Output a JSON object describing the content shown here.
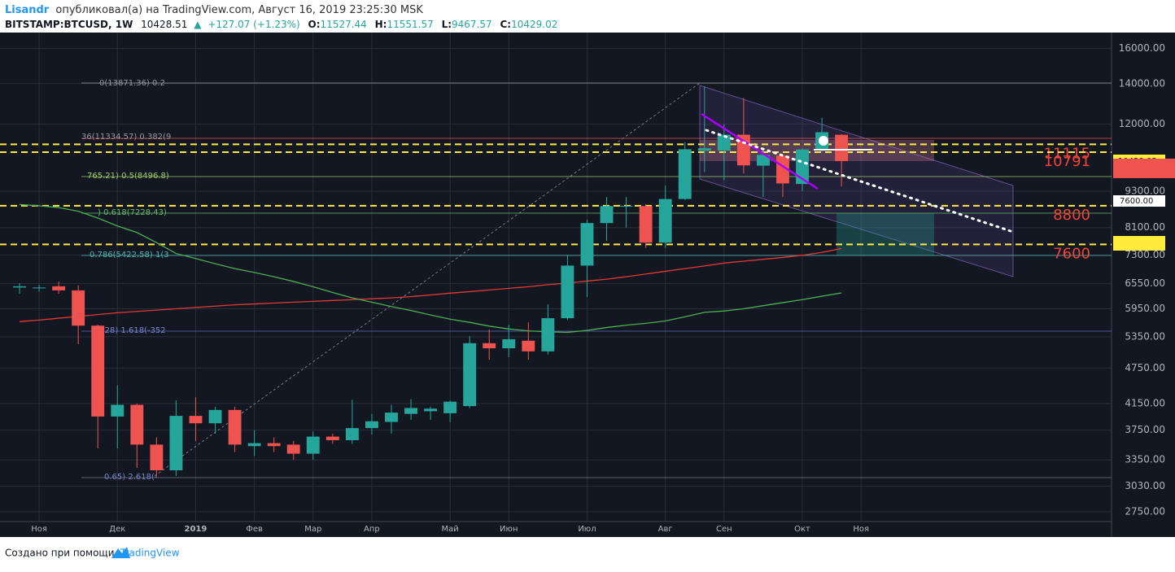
{
  "header": {
    "author": "Lisandr",
    "published": "опубликовал(а) на TradingView.com, Август 16, 2019 23:25:30 MSK",
    "symbol": "BITSTAMP:BTCUSD, 1W",
    "last": "10428.51",
    "change": "+127.07 (+1.23%)",
    "ohlc_labels": [
      "O:",
      "H:",
      "L:",
      "C:"
    ]
  },
  "footer": {
    "text": "Создано при помощи",
    "brand": "TradingView"
  },
  "fib_labels": [
    "0(13871.36) 0.2",
    "36(11334.57) 0.382(9",
    "765.21) 0.5(8496.8)",
    ") 0.618(7228.43)",
    "0.786(5422.58) 1(3",
    "(3428) 1.618(-352",
    "0.65) 2.618(-"
  ],
  "axis_tag": "7600.00",
  "chart_data": {
    "type": "candlestick",
    "log_scale": true,
    "grid": true,
    "categories": [
      null,
      "Ноя",
      null,
      null,
      null,
      "Дек",
      null,
      null,
      null,
      "2019",
      null,
      null,
      "Фев",
      null,
      null,
      "Мар",
      null,
      null,
      "Апр",
      null,
      null,
      null,
      "Май",
      null,
      null,
      "Июн",
      null,
      null,
      null,
      "Июл",
      null,
      null,
      null,
      "Авг",
      null,
      null,
      "Сен",
      null,
      null,
      null,
      "Окт",
      null,
      null,
      "Ноя",
      null,
      null,
      null,
      null,
      null,
      null,
      null,
      null,
      null,
      null,
      null,
      null
    ],
    "open": [
      6450,
      6430,
      6480,
      6380,
      5580,
      3950,
      4130,
      3550,
      3220,
      3960,
      3850,
      4050,
      3530,
      3570,
      3550,
      3430,
      3660,
      3610,
      3780,
      3870,
      3990,
      4030,
      4000,
      4110,
      5220,
      5120,
      5270,
      5060,
      5740,
      7010,
      8240,
      8780,
      8790,
      7650,
      9030,
      10850,
      10850,
      11530,
      10250,
      10650,
      9560,
      10900,
      11527.44,
      null,
      null,
      null,
      null,
      null,
      null,
      null,
      null,
      null,
      null,
      null,
      null,
      null
    ],
    "high": [
      6560,
      6520,
      6600,
      6500,
      5600,
      4450,
      4150,
      3650,
      4200,
      4250,
      4100,
      4100,
      3750,
      3650,
      3600,
      3730,
      3700,
      4210,
      3990,
      4130,
      4220,
      4100,
      4200,
      5360,
      5500,
      5600,
      5650,
      6050,
      7300,
      8350,
      9100,
      9100,
      8850,
      9500,
      11200,
      13870,
      12000,
      13260,
      10900,
      10700,
      10950,
      12300,
      11551.57,
      null,
      null,
      null,
      null,
      null,
      null,
      null,
      null,
      null,
      null,
      null,
      null,
      null
    ],
    "low": [
      6300,
      6350,
      6300,
      5200,
      3500,
      3500,
      3250,
      3150,
      3150,
      3600,
      3700,
      3450,
      3400,
      3450,
      3350,
      3350,
      3560,
      3560,
      3690,
      3700,
      3900,
      3900,
      3870,
      4080,
      4900,
      4950,
      4900,
      5000,
      5700,
      6220,
      7700,
      8100,
      7500,
      7500,
      9000,
      10000,
      9700,
      9950,
      9100,
      9100,
      9300,
      10800,
      9467.57,
      null,
      null,
      null,
      null,
      null,
      null,
      null,
      null,
      null,
      null,
      null,
      null,
      null
    ],
    "close": [
      6480,
      6450,
      6380,
      5580,
      3950,
      4130,
      3550,
      3220,
      3960,
      3850,
      4050,
      3550,
      3570,
      3530,
      3430,
      3660,
      3610,
      3780,
      3880,
      4010,
      4080,
      4070,
      4180,
      5220,
      5120,
      5300,
      5060,
      5740,
      7010,
      8240,
      8790,
      8800,
      7650,
      9030,
      10910,
      10950,
      11530,
      10260,
      10680,
      9580,
      10900,
      11640,
      10429.02,
      null,
      null,
      null,
      null,
      null,
      null,
      null,
      null,
      null,
      null,
      null,
      null,
      null
    ],
    "up_color": "#26a69a",
    "down_color": "#ef5350",
    "moving_averages": [
      {
        "color": "#e53935",
        "values": [
          5665,
          5700,
          5740,
          5780,
          5820,
          5860,
          5890,
          5920,
          5950,
          5980,
          6010,
          6040,
          6060,
          6080,
          6100,
          6120,
          6140,
          6160,
          6180,
          6200,
          6230,
          6270,
          6313,
          6350,
          6390,
          6430,
          6470,
          6520,
          6560,
          6610,
          6657,
          6720,
          6790,
          6860,
          6930,
          7000,
          7078,
          7130,
          7180,
          7230,
          7290,
          7370,
          7483,
          null,
          null,
          null,
          null,
          null,
          null,
          null,
          null,
          null,
          null,
          null,
          null,
          null
        ]
      },
      {
        "color": "#4caf50",
        "values": [
          8842,
          8800,
          8740,
          8620,
          8400,
          8150,
          7950,
          7650,
          7340,
          7200,
          7060,
          6930,
          6830,
          6720,
          6600,
          6470,
          6330,
          6200,
          6100,
          6000,
          5910,
          5810,
          5720,
          5650,
          5570,
          5510,
          5470,
          5450,
          5440,
          5480,
          5540,
          5590,
          5630,
          5680,
          5770,
          5870,
          5900,
          5950,
          6020,
          6090,
          6160,
          6240,
          6320,
          null,
          null,
          null,
          null,
          null,
          null,
          null,
          null,
          null,
          null,
          null,
          null,
          null
        ]
      }
    ],
    "levels": [
      11115,
      10791,
      8800,
      7600
    ],
    "level_color": "#ffeb3b",
    "level_label_color": "#f44336",
    "ylim": [
      2650,
      17000
    ],
    "yticks": [
      {
        "value": 16000,
        "label": "16000.00"
      },
      {
        "value": 14000,
        "label": "14000.00"
      },
      {
        "value": 12000,
        "label": "12000.00"
      },
      {
        "value": 9300,
        "label": "9300.00"
      },
      {
        "value": 8100,
        "label": "8100.00"
      },
      {
        "value": 7300,
        "label": "7300.00"
      },
      {
        "value": 6550,
        "label": "6550.00"
      },
      {
        "value": 5950,
        "label": "5950.00"
      },
      {
        "value": 5350,
        "label": "5350.00"
      },
      {
        "value": 4750,
        "label": "4750.00"
      },
      {
        "value": 4150,
        "label": "4150.00"
      },
      {
        "value": 3750,
        "label": "3750.00"
      },
      {
        "value": 3350,
        "label": "3350.00"
      },
      {
        "value": 3030,
        "label": "3030.00"
      },
      {
        "value": 2750,
        "label": "2750.00"
      }
    ]
  }
}
